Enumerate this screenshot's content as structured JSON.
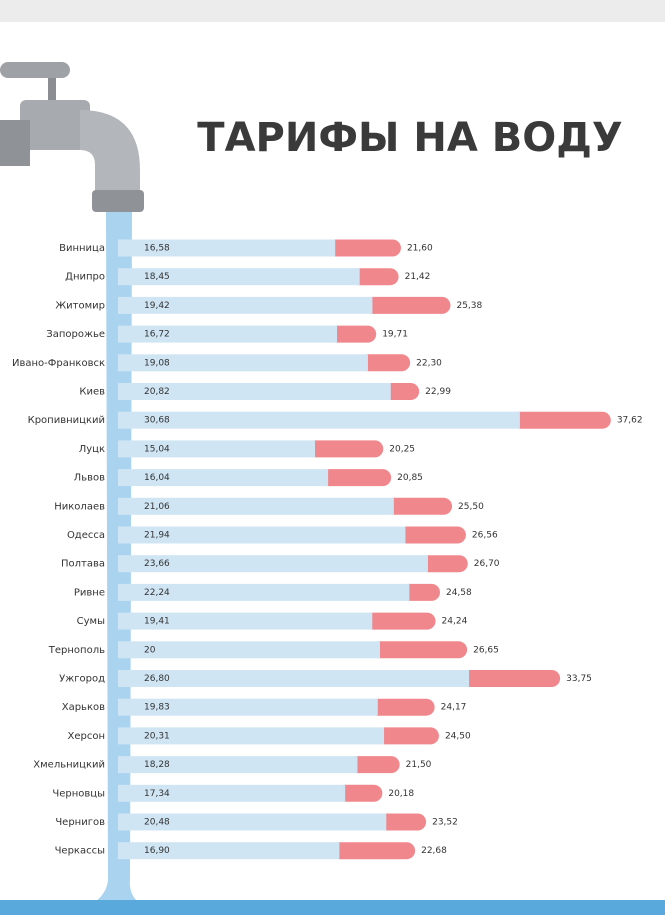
{
  "chart_data": {
    "type": "bar",
    "title": "ТАРИФЫ НА ВОДУ",
    "categories": [
      "Винница",
      "Днипро",
      "Житомир",
      "Запорожье",
      "Ивано-Франковск",
      "Киев",
      "Кропивницкий",
      "Луцк",
      "Львов",
      "Николаев",
      "Одесса",
      "Полтава",
      "Ривне",
      "Сумы",
      "Тернополь",
      "Ужгород",
      "Харьков",
      "Херсон",
      "Хмельницкий",
      "Черновцы",
      "Чернигов",
      "Черкассы"
    ],
    "series": [
      {
        "color": "#cfe5f4",
        "values": [
          16.58,
          18.45,
          19.42,
          16.72,
          19.08,
          20.82,
          30.68,
          15.04,
          16.04,
          21.06,
          21.94,
          23.66,
          22.24,
          19.41,
          20,
          26.8,
          19.83,
          20.31,
          18.28,
          17.34,
          20.48,
          16.9
        ],
        "value_labels": [
          "16,58",
          "18,45",
          "19,42",
          "16,72",
          "19,08",
          "20,82",
          "30,68",
          "15,04",
          "16,04",
          "21,06",
          "21,94",
          "23,66",
          "22,24",
          "19,41",
          "20",
          "26,80",
          "19,83",
          "20,31",
          "18,28",
          "17,34",
          "20,48",
          "16,90"
        ]
      },
      {
        "color": "#f0878c",
        "values": [
          21.6,
          21.42,
          25.38,
          19.71,
          22.3,
          22.99,
          37.62,
          20.25,
          20.85,
          25.5,
          26.56,
          26.7,
          24.58,
          24.24,
          26.65,
          33.75,
          24.17,
          24.5,
          21.5,
          20.18,
          23.52,
          22.68
        ],
        "value_labels": [
          "21,60",
          "21,42",
          "25,38",
          "19,71",
          "22,30",
          "22,99",
          "37,62",
          "20,25",
          "20,85",
          "25,50",
          "26,56",
          "26,70",
          "24,58",
          "24,24",
          "26,65",
          "33,75",
          "24,17",
          "24,50",
          "21,50",
          "20,18",
          "23,52",
          "22,68"
        ]
      }
    ]
  }
}
